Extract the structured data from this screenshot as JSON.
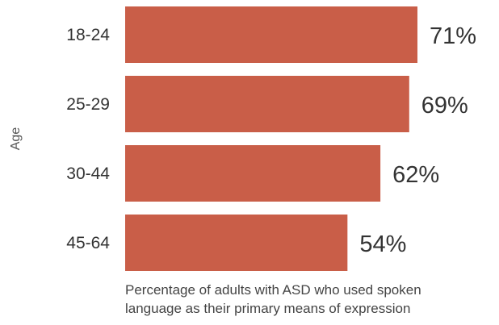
{
  "chart_data": {
    "type": "bar",
    "orientation": "horizontal",
    "categories": [
      "18-24",
      "25-29",
      "30-44",
      "45-64"
    ],
    "values": [
      71,
      69,
      62,
      54
    ],
    "value_labels": [
      "71%",
      "69%",
      "62%",
      "54%"
    ],
    "ylabel": "Age",
    "xlabel_line1": "Percentage of adults with ASD who used spoken",
    "xlabel_line2": "language as their primary means of expression",
    "xlim": [
      0,
      100
    ],
    "grid": false,
    "bar_color": "#c95e48"
  }
}
